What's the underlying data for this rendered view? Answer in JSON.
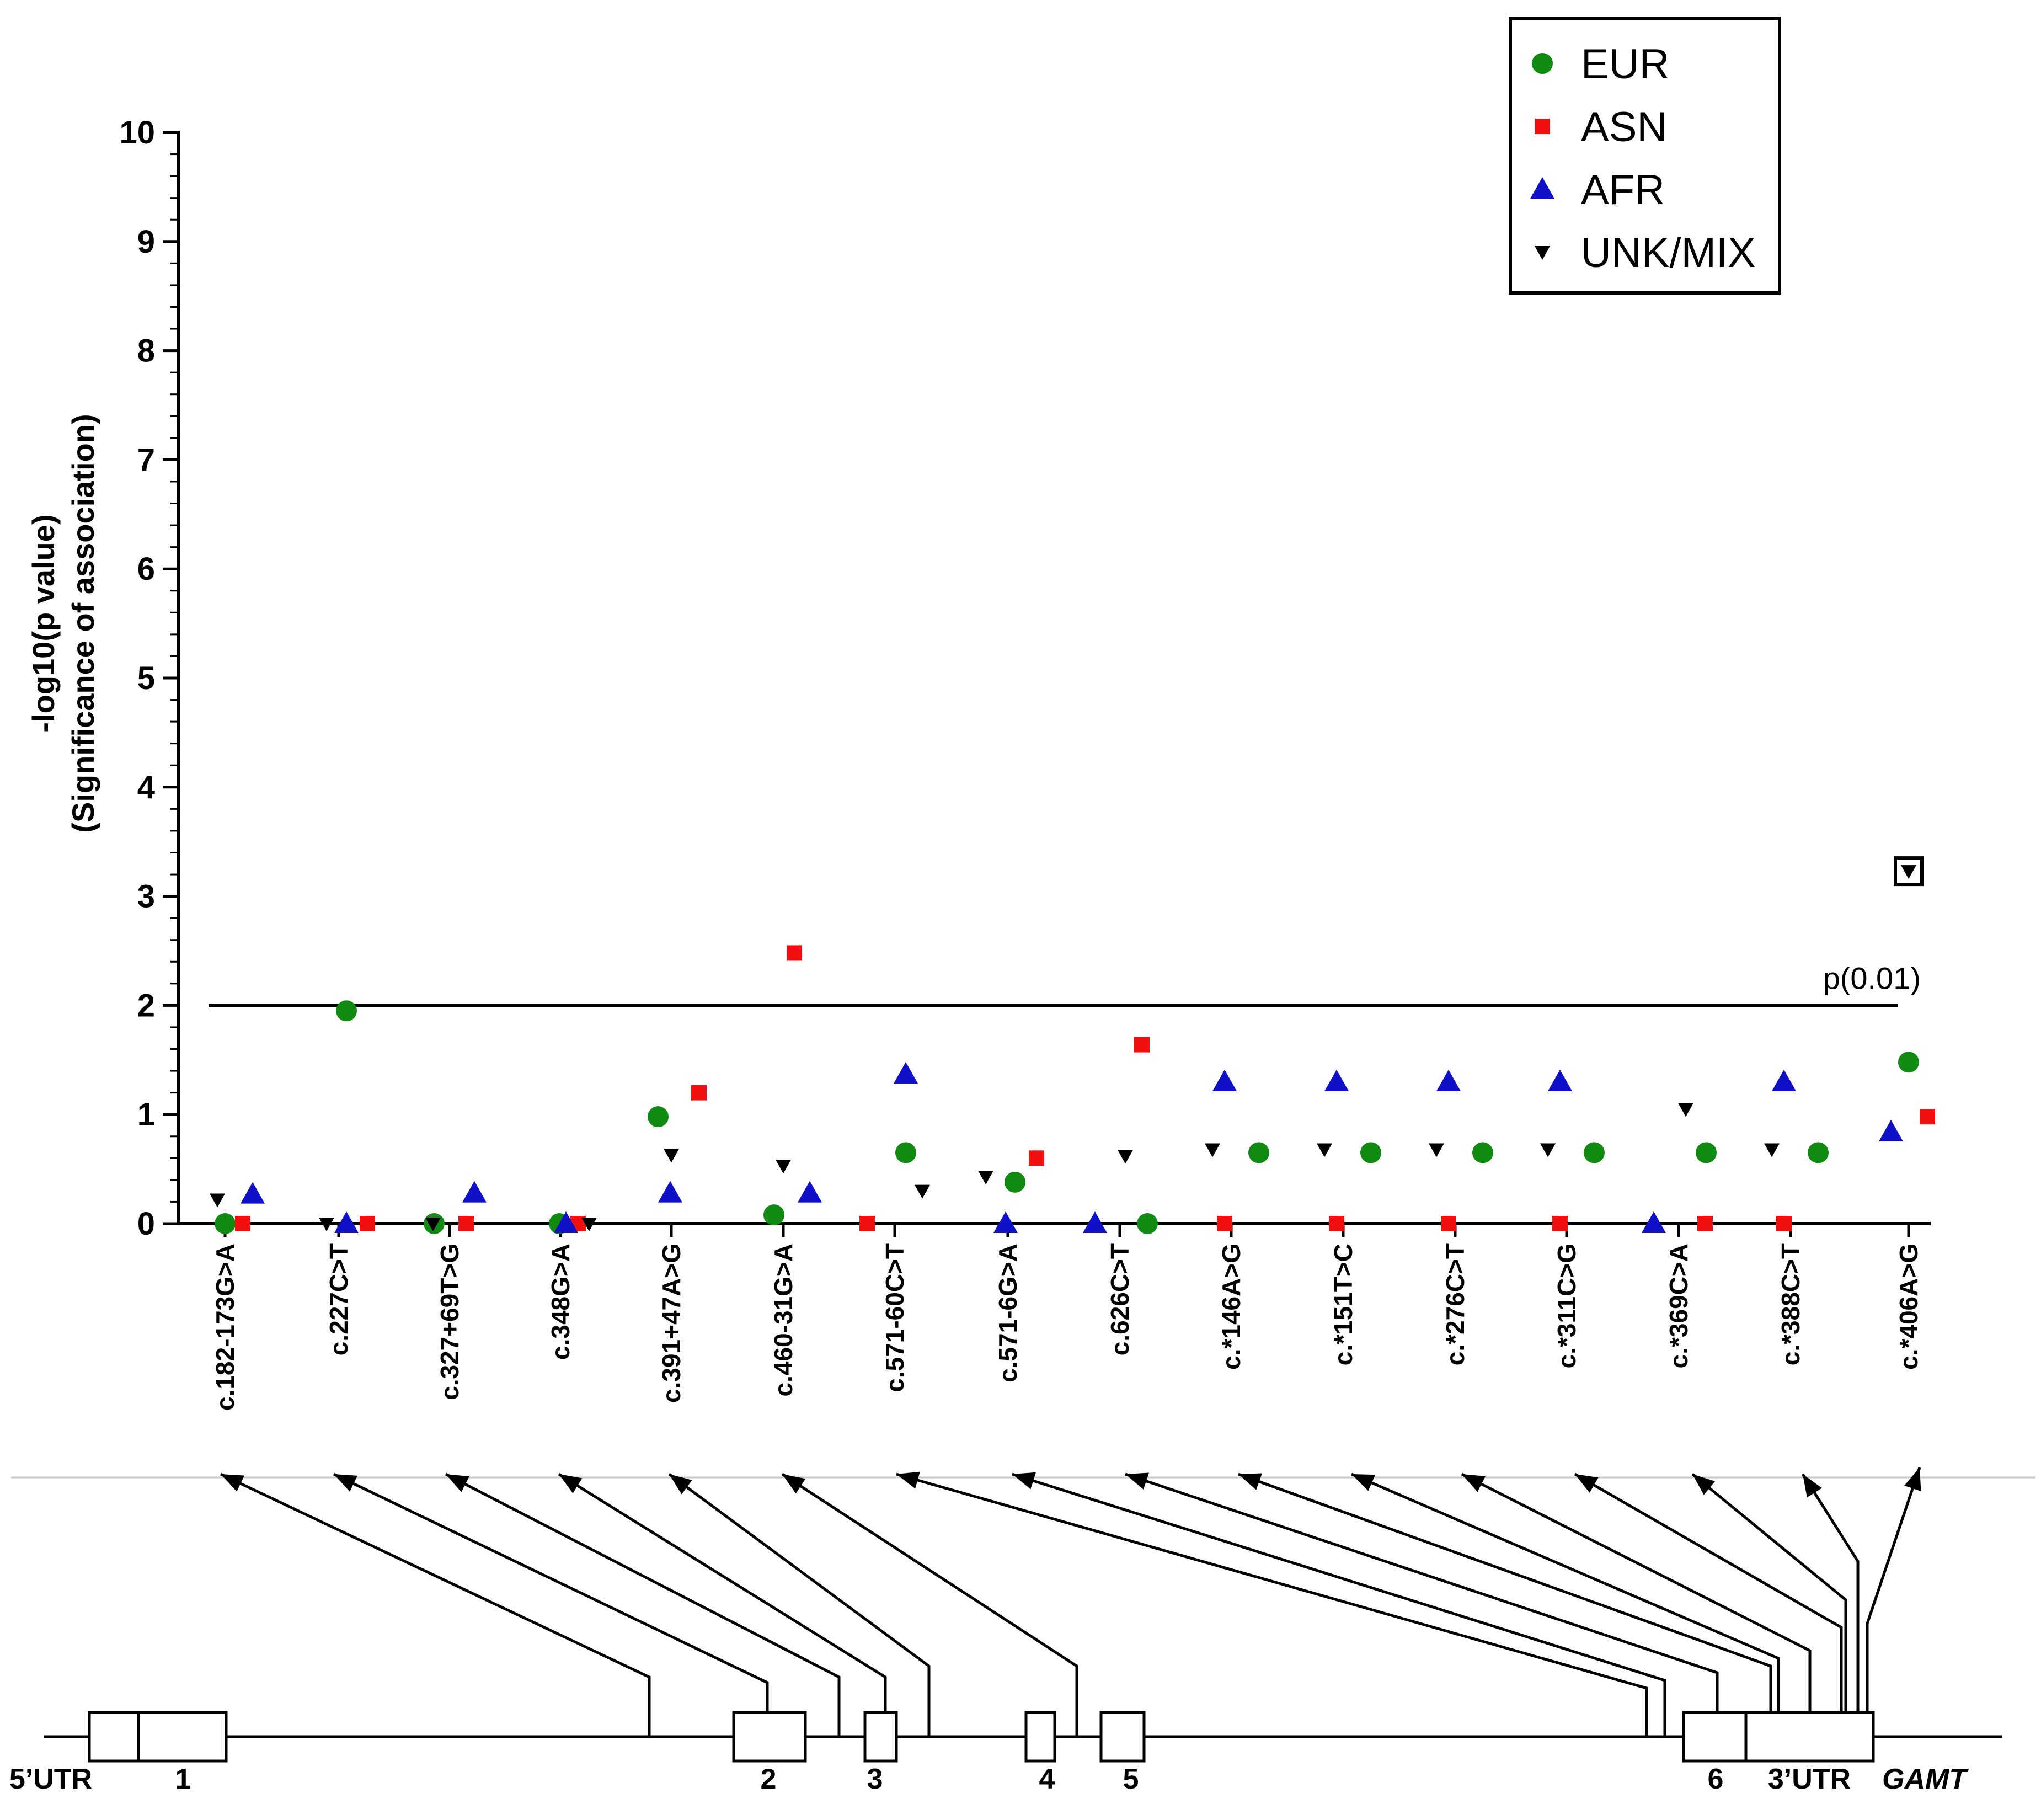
{
  "chart_data": {
    "type": "scatter",
    "ylabel": "-log10(p value)",
    "ylabel_sub": "(Significance of association)",
    "ylim": [
      0,
      10
    ],
    "yticks": [
      "0",
      "1",
      "2",
      "3",
      "4",
      "5",
      "6",
      "7",
      "8",
      "9",
      "10"
    ],
    "categories": [
      "c.182-173G>A",
      "c.227C>T",
      "c.327+69T>G",
      "c.348G>A",
      "c.391+47A>G",
      "c.460-31G>A",
      "c.571-60C>T",
      "c.571-6G>A",
      "c.626C>T",
      "c.*146A>G",
      "c.*151T>C",
      "c.*276C>T",
      "c.*311C>G",
      "c.*369C>A",
      "c.*388C>T",
      "c.*406A>G"
    ],
    "series": [
      {
        "name": "EUR",
        "color": "#108a10",
        "marker": "circle",
        "values": [
          0,
          1.95,
          0,
          0,
          0.98,
          0.08,
          0.65,
          0.38,
          0,
          0.65,
          0.65,
          0.65,
          0.65,
          0.65,
          0.65,
          1.48
        ]
      },
      {
        "name": "ASN",
        "color": "#f01010",
        "marker": "square",
        "values": [
          0,
          0,
          0,
          0,
          1.2,
          2.48,
          0,
          0.6,
          1.64,
          0,
          0,
          0,
          0,
          0,
          0,
          0.98
        ]
      },
      {
        "name": "AFR",
        "color": "#1010c8",
        "marker": "triangle-up",
        "values": [
          0.27,
          0,
          0.28,
          0,
          0.28,
          0.28,
          1.37,
          0,
          0,
          1.3,
          1.3,
          1.3,
          1.3,
          0,
          1.3,
          0.84
        ]
      },
      {
        "name": "UNK/MIX",
        "color": "#000000",
        "marker": "triangle-down",
        "values": [
          0.22,
          0,
          0,
          0,
          0.63,
          0.53,
          0.3,
          0.43,
          0.62,
          0.68,
          0.68,
          0.68,
          0.68,
          1.05,
          0.68,
          3.23
        ]
      }
    ],
    "highlighted": {
      "series": "UNK/MIX",
      "category": "c.*406A>G",
      "value": 3.23
    },
    "threshold": {
      "value": 2,
      "label": "p(0.01)"
    },
    "legend": {
      "position": "top-right",
      "entries": [
        "EUR",
        "ASN",
        "AFR",
        "UNK/MIX"
      ]
    },
    "gene": {
      "name": "GAMT",
      "labels": [
        "5’UTR",
        "1",
        "2",
        "3",
        "4",
        "5",
        "6",
        "3’UTR"
      ]
    }
  }
}
